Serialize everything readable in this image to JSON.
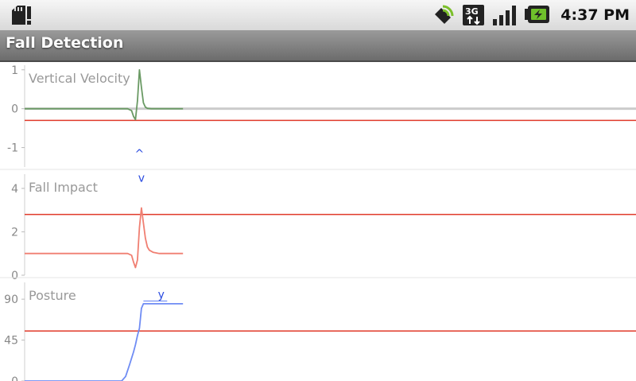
{
  "status_bar": {
    "time": "4:37 PM",
    "network_type": "3G",
    "icons": [
      "sd-card-warning-icon",
      "gps-satellite-icon",
      "3g-data-icon",
      "signal-strength-icon",
      "battery-charging-icon"
    ]
  },
  "app": {
    "title": "Fall Detection"
  },
  "colors": {
    "threshold": "#e03a2a",
    "velocity": "#6a9a64",
    "impact": "#f07f72",
    "posture": "#6f8cf4",
    "marker": "#2a4be0",
    "axis_text": "#888888",
    "title_text": "#999999"
  },
  "chart_data": [
    {
      "type": "line",
      "title": "Vertical Velocity",
      "ylim": [
        -1.5,
        1.2
      ],
      "yticks": [
        1,
        0,
        -1
      ],
      "ytick_labels": [
        "1",
        "0",
        "-1"
      ],
      "xlim": [
        0,
        100
      ],
      "threshold": -0.3,
      "marker": {
        "text": "^",
        "x": 58,
        "y": -1.25
      },
      "series": [
        {
          "color": "#6a9a64",
          "x": [
            0,
            52,
            54,
            55,
            56,
            57,
            58,
            59,
            60,
            61,
            62,
            64,
            66,
            80
          ],
          "y": [
            0,
            0,
            -0.05,
            -0.2,
            -0.28,
            0.2,
            1.0,
            0.55,
            0.15,
            0.04,
            0.01,
            0,
            0,
            0
          ]
        }
      ]
    },
    {
      "type": "line",
      "title": "Fall Impact",
      "ylim": [
        0,
        4.8
      ],
      "yticks": [
        4,
        2,
        0
      ],
      "ytick_labels": [
        "4",
        "2",
        "0"
      ],
      "xlim": [
        0,
        100
      ],
      "threshold": 2.8,
      "marker": {
        "text": "v",
        "x": 59,
        "y": 4.3
      },
      "series": [
        {
          "color": "#f07f72",
          "x": [
            0,
            52,
            54,
            55,
            56,
            57,
            58,
            59,
            60,
            61,
            62,
            63,
            65,
            68,
            80
          ],
          "y": [
            1,
            1,
            0.92,
            0.6,
            0.35,
            0.7,
            2.2,
            3.1,
            2.4,
            1.7,
            1.3,
            1.15,
            1.05,
            1,
            1
          ]
        }
      ]
    },
    {
      "type": "line",
      "title": "Posture",
      "ylim": [
        0,
        112
      ],
      "yticks": [
        90,
        45,
        0
      ],
      "ytick_labels": [
        "90",
        "45",
        "0"
      ],
      "xlim": [
        0,
        100
      ],
      "threshold": 55,
      "marker": {
        "text": "y",
        "x": 69,
        "y": 91
      },
      "series": [
        {
          "color": "#6f8cf4",
          "x": [
            0,
            45,
            47,
            49,
            51,
            53,
            55,
            56,
            57,
            58,
            59,
            60,
            62,
            70,
            80
          ],
          "y": [
            0,
            0,
            0,
            0,
            5,
            18,
            32,
            40,
            50,
            58,
            80,
            85,
            85,
            85,
            85
          ]
        }
      ]
    }
  ]
}
